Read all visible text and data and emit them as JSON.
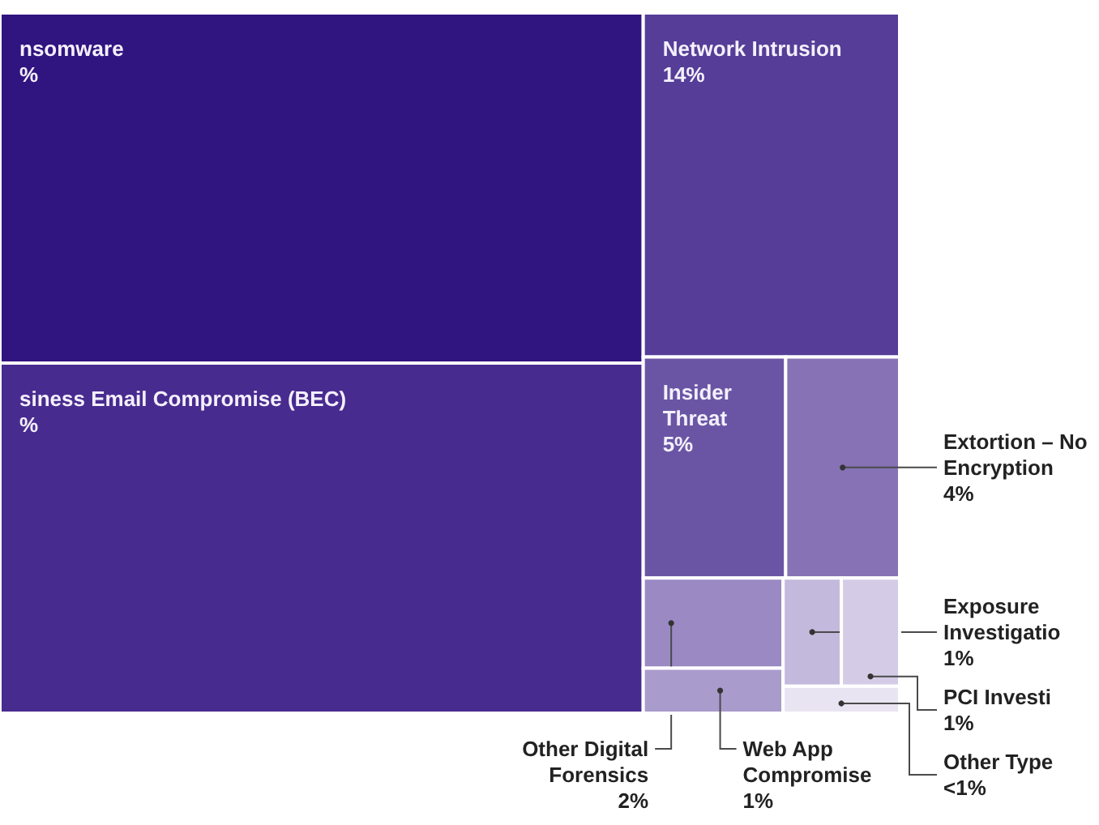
{
  "chart_data": {
    "type": "other",
    "categories": [
      "nsomware",
      "siness Email Compromise (BEC)",
      "Network Intrusion",
      "Insider Threat",
      "Extortion – No Encryption",
      "Other Digital Forensics",
      "Web App Compromise",
      "Exposure Investigatio",
      "PCI Investi",
      "Other Type"
    ],
    "values": [
      null,
      null,
      14,
      5,
      4,
      2,
      1,
      1,
      1,
      0.5
    ],
    "value_labels": [
      "%",
      "%",
      "14%",
      "5%",
      "4%",
      "2%",
      "1%",
      "1%",
      "1%",
      "<1%"
    ],
    "colors": [
      "#301480",
      "#482b8f",
      "#553d98",
      "#6a55a5",
      "#8672b5",
      "#9a89c3",
      "#a99bcc",
      "#c3b9dc",
      "#d4cce6",
      "#e9e4f2"
    ]
  }
}
